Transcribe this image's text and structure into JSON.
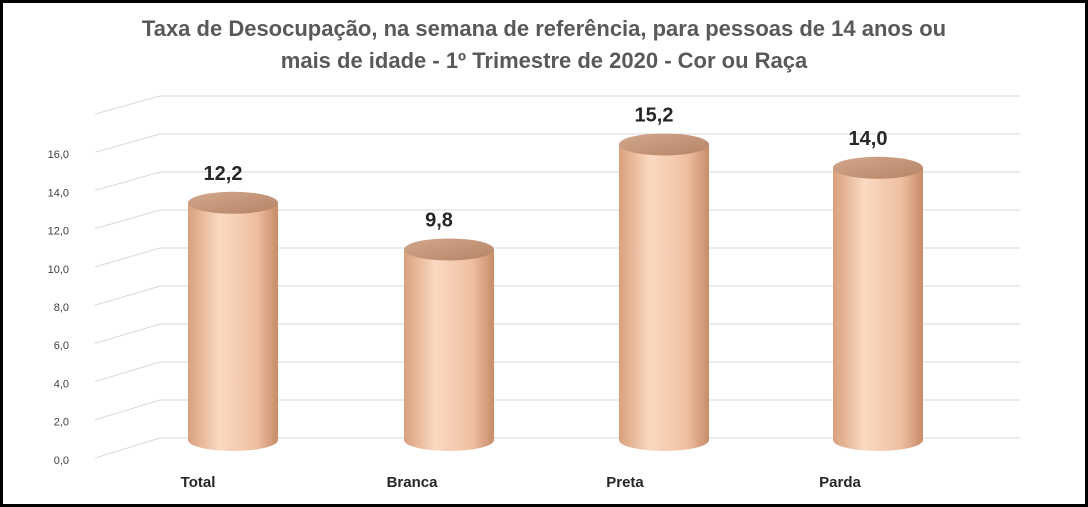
{
  "chart_data": {
    "type": "bar3d",
    "title": "Taxa de Desocupação, na semana de referência, para pessoas de 14 anos ou",
    "subtitle": "mais de idade - 1º Trimestre de 2020 - Cor ou Raça",
    "categories": [
      "Total",
      "Branca",
      "Preta",
      "Parda"
    ],
    "values": [
      12.2,
      9.8,
      15.2,
      14.0
    ],
    "value_labels": [
      "12,2",
      "9,8",
      "15,2",
      "14,0"
    ],
    "color": "#e8b597",
    "ylim": [
      0,
      18
    ],
    "yticks": [
      {
        "value": 0,
        "label": "0,0"
      },
      {
        "value": 2,
        "label": "2,0"
      },
      {
        "value": 4,
        "label": "4,0"
      },
      {
        "value": 6,
        "label": "6,0"
      },
      {
        "value": 8,
        "label": "8,0"
      },
      {
        "value": 10,
        "label": "10,0"
      },
      {
        "value": 12,
        "label": "12,0"
      },
      {
        "value": 14,
        "label": "14,0"
      },
      {
        "value": 16,
        "label": "16,0"
      }
    ],
    "grid": true
  }
}
